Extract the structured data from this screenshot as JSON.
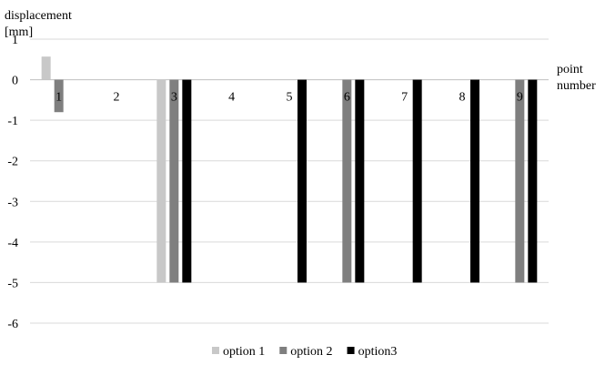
{
  "chart_data": {
    "type": "bar",
    "title": "",
    "ylabel_lines": [
      "displacement",
      "[mm]"
    ],
    "xlabel_lines": [
      "point",
      "number"
    ],
    "categories": [
      "1",
      "2",
      "3",
      "4",
      "5",
      "6",
      "7",
      "8",
      "9"
    ],
    "ylim": [
      -6,
      1
    ],
    "yticks": [
      1,
      0,
      -1,
      -2,
      -3,
      -4,
      -5,
      -6
    ],
    "grid": true,
    "legend_position": "bottom",
    "series": [
      {
        "name": "option 1",
        "color": "#c8c8c8",
        "values": [
          0.57,
          0,
          -5,
          0,
          0,
          0,
          0,
          0,
          0
        ]
      },
      {
        "name": "option 2",
        "color": "#7f7f7f",
        "values": [
          -0.8,
          0,
          -5,
          0,
          0,
          -5,
          0,
          0,
          -5
        ]
      },
      {
        "name": "option3",
        "color": "#000000",
        "values": [
          0,
          0,
          -5,
          0,
          -5,
          -5,
          -5,
          -5,
          -5
        ]
      }
    ]
  }
}
